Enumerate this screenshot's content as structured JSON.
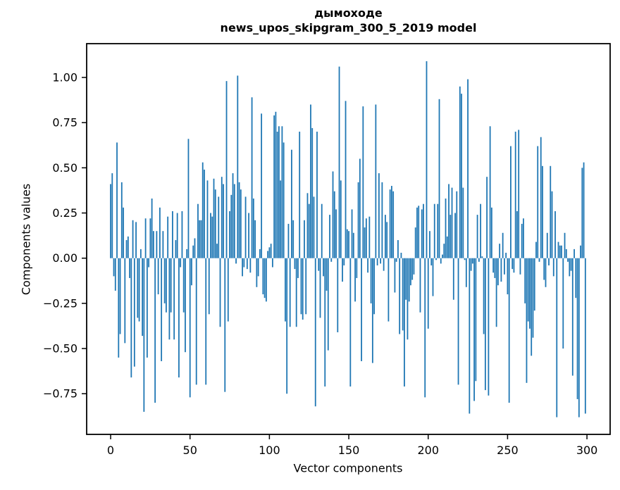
{
  "title": {
    "line1": "дымоходе",
    "line2": "news_upos_skipgram_300_5_2019 model"
  },
  "chart_data": {
    "type": "bar",
    "title": "дымоходе",
    "subtitle": "news_upos_skipgram_300_5_2019 model",
    "xlabel": "Vector components",
    "ylabel": "Components values",
    "bar_color": "#1f77b4",
    "axis_color": "#000000",
    "background_color": "#ffffff",
    "grid": false,
    "legend": false,
    "x_range": [
      0,
      299
    ],
    "xlim": [
      -15.1,
      314.6
    ],
    "ylim": [
      -0.975,
      1.187
    ],
    "x_ticks": [
      0,
      50,
      100,
      150,
      200,
      250,
      300
    ],
    "x_tick_labels": [
      "0",
      "50",
      "100",
      "150",
      "200",
      "250",
      "300"
    ],
    "y_ticks": [
      1.0,
      0.75,
      0.5,
      0.25,
      0.0,
      -0.25,
      -0.5,
      -0.75
    ],
    "y_tick_labels": [
      "1.00",
      "0.75",
      "0.50",
      "0.25",
      "0.00",
      "−0.25",
      "−0.50",
      "−0.75"
    ],
    "values": [
      0.41,
      0.47,
      -0.1,
      -0.18,
      0.64,
      -0.55,
      -0.42,
      0.42,
      0.28,
      -0.47,
      0.1,
      0.12,
      -0.11,
      -0.66,
      0.21,
      -0.6,
      0.2,
      -0.33,
      -0.35,
      0.05,
      -0.43,
      -0.85,
      0.22,
      -0.55,
      -0.05,
      0.22,
      0.33,
      0.15,
      -0.8,
      0.15,
      -0.2,
      0.28,
      -0.57,
      0.15,
      -0.25,
      -0.3,
      0.23,
      -0.45,
      -0.3,
      0.26,
      -0.45,
      0.1,
      0.25,
      -0.66,
      -0.05,
      0.26,
      -0.3,
      -0.52,
      0.05,
      0.66,
      -0.77,
      -0.15,
      0.07,
      0.11,
      -0.7,
      0.3,
      0.21,
      0.21,
      0.53,
      0.49,
      -0.7,
      0.43,
      -0.31,
      0.25,
      0.23,
      0.44,
      0.38,
      0.08,
      0.34,
      -0.38,
      0.45,
      0.41,
      -0.74,
      0.98,
      -0.35,
      0.26,
      0.35,
      0.47,
      0.41,
      -0.03,
      1.01,
      0.42,
      0.38,
      -0.1,
      -0.05,
      0.34,
      -0.06,
      0.25,
      -0.08,
      0.89,
      0.33,
      0.21,
      -0.16,
      -0.1,
      0.05,
      0.8,
      -0.2,
      -0.22,
      -0.24,
      0.04,
      0.06,
      0.08,
      -0.05,
      0.79,
      0.81,
      0.7,
      0.73,
      0.43,
      0.73,
      0.64,
      -0.35,
      -0.75,
      0.19,
      -0.38,
      0.6,
      0.21,
      -0.06,
      -0.38,
      -0.11,
      0.7,
      -0.31,
      -0.34,
      0.21,
      -0.31,
      0.36,
      0.3,
      0.85,
      0.72,
      0.34,
      -0.82,
      0.7,
      -0.07,
      -0.33,
      0.3,
      -0.1,
      -0.71,
      -0.18,
      -0.51,
      0.24,
      -0.02,
      0.48,
      0.37,
      0.27,
      -0.41,
      1.06,
      0.43,
      -0.13,
      -0.04,
      0.87,
      0.16,
      0.15,
      -0.71,
      0.27,
      0.14,
      -0.24,
      -0.11,
      0.42,
      0.55,
      -0.57,
      0.84,
      0.17,
      0.22,
      -0.08,
      0.23,
      -0.25,
      -0.58,
      -0.31,
      0.85,
      -0.04,
      0.47,
      -0.03,
      0.42,
      -0.07,
      0.24,
      0.2,
      -0.35,
      0.38,
      0.4,
      0.37,
      -0.19,
      -0.02,
      0.1,
      -0.42,
      0.03,
      -0.4,
      -0.71,
      -0.23,
      -0.45,
      -0.24,
      -0.15,
      -0.12,
      -0.09,
      0.17,
      0.28,
      0.29,
      -0.3,
      0.27,
      0.3,
      -0.77,
      1.09,
      -0.39,
      0.15,
      -0.04,
      -0.21,
      0.3,
      -0.01,
      0.3,
      0.88,
      -0.03,
      0.02,
      0.08,
      0.33,
      0.12,
      0.41,
      0.24,
      0.39,
      -0.23,
      0.25,
      0.37,
      -0.7,
      0.95,
      0.91,
      0.39,
      -0.01,
      -0.16,
      0.99,
      -0.86,
      -0.07,
      -0.03,
      -0.79,
      -0.68,
      0.24,
      -0.02,
      0.3,
      0.01,
      -0.42,
      -0.73,
      0.45,
      -0.76,
      0.73,
      0.28,
      -0.08,
      -0.11,
      -0.38,
      -0.15,
      0.08,
      -0.13,
      0.14,
      -0.09,
      0.03,
      -0.2,
      -0.8,
      0.62,
      -0.06,
      -0.08,
      0.7,
      0.26,
      0.71,
      -0.09,
      0.19,
      0.22,
      -0.25,
      -0.69,
      -0.35,
      -0.39,
      -0.54,
      -0.44,
      -0.29,
      0.09,
      0.62,
      -0.02,
      0.67,
      0.51,
      -0.12,
      -0.16,
      0.14,
      -0.04,
      0.51,
      0.37,
      -0.1,
      0.26,
      -0.88,
      0.09,
      0.07,
      0.07,
      -0.5,
      0.14,
      0.05,
      -0.02,
      -0.1,
      -0.07,
      -0.65,
      0.05,
      -0.22,
      -0.78,
      -0.88,
      0.07,
      0.5,
      0.53,
      -0.86
    ]
  }
}
